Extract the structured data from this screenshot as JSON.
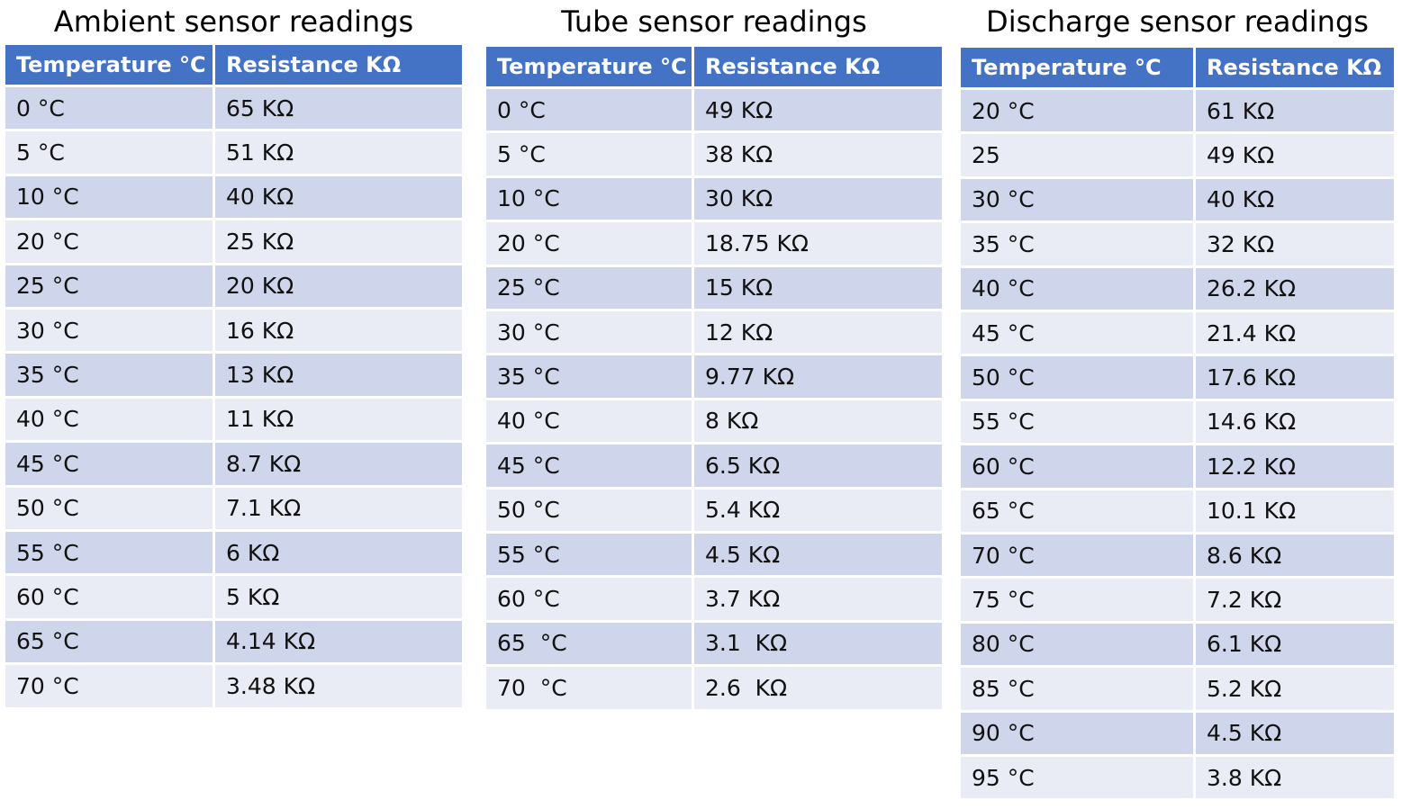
{
  "tables": [
    {
      "title": "Ambient sensor readings",
      "header": [
        "Temperature °C",
        "Resistance KΩ"
      ],
      "rows": [
        [
          "0 °C",
          "65 KΩ"
        ],
        [
          "5 °C",
          "51 KΩ"
        ],
        [
          "10 °C",
          "40 KΩ"
        ],
        [
          "20 °C",
          "25 KΩ"
        ],
        [
          "25 °C",
          "20 KΩ"
        ],
        [
          "30 °C",
          "16 KΩ"
        ],
        [
          "35 °C",
          "13 KΩ"
        ],
        [
          "40 °C",
          "11 KΩ"
        ],
        [
          "45 °C",
          "8.7 KΩ"
        ],
        [
          "50 °C",
          "7.1 KΩ"
        ],
        [
          "55 °C",
          "6 KΩ"
        ],
        [
          "60 °C",
          "5 KΩ"
        ],
        [
          "65 °C",
          "4.14 KΩ"
        ],
        [
          "70 °C",
          "3.48 KΩ"
        ]
      ]
    },
    {
      "title": "Tube sensor readings",
      "header": [
        "Temperature °C",
        "Resistance KΩ"
      ],
      "rows": [
        [
          "0 °C",
          "49 KΩ"
        ],
        [
          "5 °C",
          "38 KΩ"
        ],
        [
          "10 °C",
          "30 KΩ"
        ],
        [
          "20 °C",
          "18.75 KΩ"
        ],
        [
          "25 °C",
          "15 KΩ"
        ],
        [
          "30 °C",
          "12 KΩ"
        ],
        [
          "35 °C",
          "9.77 KΩ"
        ],
        [
          "40 °C",
          "8 KΩ"
        ],
        [
          "45 °C",
          "6.5 KΩ"
        ],
        [
          "50 °C",
          "5.4 KΩ"
        ],
        [
          "55 °C",
          "4.5 KΩ"
        ],
        [
          "60 °C",
          "3.7 KΩ"
        ],
        [
          "65  °C",
          "3.1  KΩ"
        ],
        [
          "70  °C",
          "2.6  KΩ"
        ]
      ]
    },
    {
      "title": "Discharge sensor readings",
      "header": [
        "Temperature °C",
        "Resistance KΩ"
      ],
      "rows": [
        [
          "20 °C",
          "61 KΩ"
        ],
        [
          "25",
          "49 KΩ"
        ],
        [
          "30 °C",
          "40 KΩ"
        ],
        [
          "35 °C",
          "32 KΩ"
        ],
        [
          "40 °C",
          "26.2 KΩ"
        ],
        [
          "45 °C",
          "21.4 KΩ"
        ],
        [
          "50 °C",
          "17.6 KΩ"
        ],
        [
          "55 °C",
          "14.6 KΩ"
        ],
        [
          "60 °C",
          "12.2 KΩ"
        ],
        [
          "65 °C",
          "10.1 KΩ"
        ],
        [
          "70 °C",
          "8.6 KΩ"
        ],
        [
          "75 °C",
          "7.2 KΩ"
        ],
        [
          "80 °C",
          "6.1 KΩ"
        ],
        [
          "85 °C",
          "5.2 KΩ"
        ],
        [
          "90 °C",
          "4.5 KΩ"
        ],
        [
          "95 °C",
          "3.8 KΩ"
        ]
      ]
    }
  ]
}
